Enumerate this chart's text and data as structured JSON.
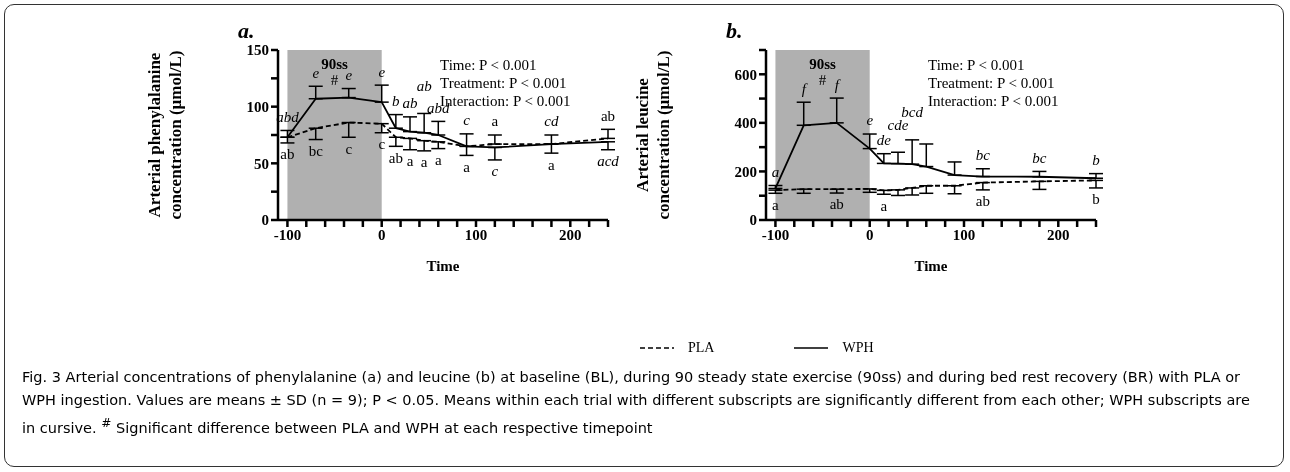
{
  "chart_data": [
    {
      "type": "line",
      "title": "a.",
      "xlabel": "Time",
      "ylabel": "Arterial phenylalanine concentration (µmol/L)",
      "x": [
        -100,
        -70,
        -35,
        0,
        15,
        30,
        45,
        60,
        90,
        120,
        180,
        240
      ],
      "series": [
        {
          "color": "#000000",
          "line_style": "dashed",
          "values": [
            73,
            81,
            86,
            85,
            73,
            72,
            70,
            69,
            65,
            67,
            67,
            72
          ],
          "errors": [
            [
              68,
              73
            ],
            [
              71,
              81
            ],
            [
              73,
              86
            ],
            [
              77,
              85
            ],
            [
              65,
              73
            ],
            [
              62,
              72
            ],
            [
              61,
              70
            ],
            [
              63,
              69
            ],
            [
              57,
              65
            ],
            [
              67,
              75
            ],
            [
              59,
              67
            ],
            [
              72,
              80
            ]
          ]
        },
        {
          "color": "#000000",
          "line_style": "solid",
          "values": [
            73,
            107,
            108,
            104,
            81,
            78,
            77,
            75,
            65,
            64,
            67,
            69
          ],
          "errors": [
            [
              73,
              79
            ],
            [
              107,
              118
            ],
            [
              108,
              116
            ],
            [
              104,
              119
            ],
            [
              81,
              93
            ],
            [
              78,
              91
            ],
            [
              77,
              94
            ],
            [
              75,
              87
            ],
            [
              65,
              76
            ],
            [
              53,
              64
            ],
            [
              67,
              75
            ],
            [
              62,
              69
            ]
          ]
        }
      ],
      "xlim": [
        -110,
        240
      ],
      "xticks": [
        -100,
        {
          "value": -80,
          "label": null
        },
        {
          "value": -60,
          "label": null
        },
        {
          "value": -40,
          "label": null
        },
        {
          "value": -20,
          "label": null
        },
        0,
        {
          "value": 20,
          "label": null
        },
        {
          "value": 40,
          "label": null
        },
        {
          "value": 60,
          "label": null
        },
        {
          "value": 80,
          "label": null
        },
        100,
        {
          "value": 120,
          "label": null
        },
        {
          "value": 140,
          "label": null
        },
        {
          "value": 160,
          "label": null
        },
        {
          "value": 180,
          "label": null
        },
        200,
        {
          "value": 220,
          "label": null
        },
        {
          "value": 240,
          "label": null
        }
      ],
      "ylim": [
        0,
        150
      ],
      "yticks": [
        0,
        {
          "value": 25,
          "label": null
        },
        50,
        {
          "value": 75,
          "label": null
        },
        100,
        {
          "value": 125,
          "label": null
        },
        150
      ],
      "bands": [
        {
          "axis": "x",
          "from": -100,
          "to": 0,
          "label": "90ss",
          "color": "#b0b0b0"
        }
      ],
      "annotations": [
        "#",
        "Time: P < 0.001",
        "Treatment: P < 0.001",
        "Interaction: P < 0.001",
        {
          "text": "e",
          "x": -70,
          "y": 118
        },
        {
          "text": "e",
          "x": -35,
          "y": 116
        },
        {
          "text": "e",
          "x": 0,
          "y": 119
        },
        {
          "text": "abd",
          "x": -100,
          "y": 79
        },
        {
          "text": "b",
          "x": 15,
          "y": 93
        },
        {
          "text": "ab",
          "x": 30,
          "y": 91
        },
        {
          "text": "ab",
          "x": 45,
          "y": 94
        },
        {
          "text": "abd",
          "x": 60,
          "y": 87
        },
        {
          "text": "c",
          "x": 90,
          "y": 76
        },
        {
          "text": "a",
          "x": 120,
          "y": 75
        },
        {
          "text": "cd",
          "x": 180,
          "y": 75
        },
        {
          "text": "ab",
          "x": 240,
          "y": 80
        },
        {
          "text": "ab",
          "x": -100,
          "y": 68
        },
        {
          "text": "bc",
          "x": -70,
          "y": 71
        },
        {
          "text": "c",
          "x": -35,
          "y": 73
        },
        {
          "text": "c",
          "x": 0,
          "y": 77
        },
        {
          "text": "ab",
          "x": 15,
          "y": 65
        },
        {
          "text": "a",
          "x": 30,
          "y": 62
        },
        {
          "text": "a",
          "x": 45,
          "y": 61
        },
        {
          "text": "a",
          "x": 60,
          "y": 63
        },
        {
          "text": "a",
          "x": 90,
          "y": 57
        },
        {
          "text": "c",
          "x": 120,
          "y": 53
        },
        {
          "text": "a",
          "x": 180,
          "y": 59
        },
        {
          "text": "acd",
          "x": 240,
          "y": 62
        }
      ],
      "marker": "none",
      "grid": false,
      "legend": false
    },
    {
      "type": "line",
      "title": "b.",
      "xlabel": "Time",
      "ylabel": "Arterial leucine concentration (µmol/L)",
      "x": [
        -100,
        -70,
        -35,
        0,
        15,
        30,
        45,
        60,
        90,
        120,
        180,
        240
      ],
      "series": [
        {
          "name": "PLA",
          "color": "#000000",
          "line_style": "dashed",
          "values": [
            123,
            127,
            127,
            128,
            122,
            124,
            132,
            141,
            141,
            154,
            159,
            163
          ],
          "errors": [
            [
              110,
              123
            ],
            [
              110,
              127
            ],
            [
              111,
              127
            ],
            [
              114,
              128
            ],
            [
              106,
              122
            ],
            [
              101,
              124
            ],
            [
              103,
              132
            ],
            [
              110,
              141
            ],
            [
              108,
              141
            ],
            [
              124,
              154
            ],
            [
              126,
              159
            ],
            [
              132,
              163
            ]
          ]
        },
        {
          "name": "WPH",
          "color": "#000000",
          "line_style": "solid",
          "values": [
            130,
            390,
            400,
            294,
            233,
            232,
            230,
            220,
            185,
            179,
            178,
            172
          ],
          "errors": [
            [
              130,
              142
            ],
            [
              390,
              485
            ],
            [
              400,
              502
            ],
            [
              294,
              354
            ],
            [
              233,
              273
            ],
            [
              232,
              279
            ],
            [
              230,
              330
            ],
            [
              220,
              313
            ],
            [
              185,
              239
            ],
            [
              179,
              211
            ],
            [
              178,
              200
            ],
            [
              172,
              191
            ]
          ]
        }
      ],
      "xlim": [
        -110,
        240
      ],
      "xticks": [
        -100,
        {
          "value": -80,
          "label": null
        },
        {
          "value": -60,
          "label": null
        },
        {
          "value": -40,
          "label": null
        },
        {
          "value": -20,
          "label": null
        },
        0,
        {
          "value": 20,
          "label": null
        },
        {
          "value": 40,
          "label": null
        },
        {
          "value": 60,
          "label": null
        },
        {
          "value": 80,
          "label": null
        },
        100,
        {
          "value": 120,
          "label": null
        },
        {
          "value": 140,
          "label": null
        },
        {
          "value": 160,
          "label": null
        },
        {
          "value": 180,
          "label": null
        },
        200,
        {
          "value": 220,
          "label": null
        },
        {
          "value": 240,
          "label": null
        }
      ],
      "ylim": [
        0,
        700
      ],
      "yticks": [
        0,
        {
          "value": 100,
          "label": null
        },
        200,
        {
          "value": 300,
          "label": null
        },
        400,
        {
          "value": 500,
          "label": null
        },
        600,
        {
          "value": 700,
          "label": null
        }
      ],
      "bands": [
        {
          "axis": "x",
          "from": -100,
          "to": 0,
          "label": "90ss",
          "color": "#b0b0b0"
        }
      ],
      "annotations": [
        "#",
        "Time: P < 0.001",
        "Treatment: P < 0.001",
        "Interaction: P < 0.001",
        {
          "text": "f",
          "x": -70,
          "y": 485
        },
        {
          "text": "f",
          "x": -35,
          "y": 502
        },
        {
          "text": "e",
          "x": 0,
          "y": 354
        },
        {
          "text": "a",
          "x": -100,
          "y": 142
        },
        {
          "text": "de",
          "x": 15,
          "y": 273
        },
        {
          "text": "cde",
          "x": 30,
          "y": 279
        },
        {
          "text": "bcd",
          "x": 45,
          "y": 330
        },
        {
          "text": "bc",
          "x": 120,
          "y": 211
        },
        {
          "text": "bc",
          "x": 180,
          "y": 200
        },
        {
          "text": "b",
          "x": 240,
          "y": 191
        },
        {
          "text": "a",
          "x": -100,
          "y": 110
        },
        {
          "text": "ab",
          "x": -35,
          "y": 111
        },
        {
          "text": "a",
          "x": 15,
          "y": 106
        },
        {
          "text": "ab",
          "x": 120,
          "y": 124
        },
        {
          "text": "b",
          "x": 240,
          "y": 132
        }
      ],
      "marker": "none",
      "grid": false,
      "legend": "bottom"
    },
    {
      "type": "other",
      "annotations": [
        "Fig. 3 Arterial concentrations of phenylalanine (a) and leucine (b) at baseline (BL), during 90 steady state exercise (90ss) and during bed rest recovery (BR) with PLA or WPH ingestion. Values are means ± SD (n = 9); P < 0.05. Means within each trial with different subscripts are significantly different from each other; WPH subscripts are in cursive. $^{#}$ Significant difference between PLA and WPH at each respective timepoint"
      ]
    }
  ]
}
